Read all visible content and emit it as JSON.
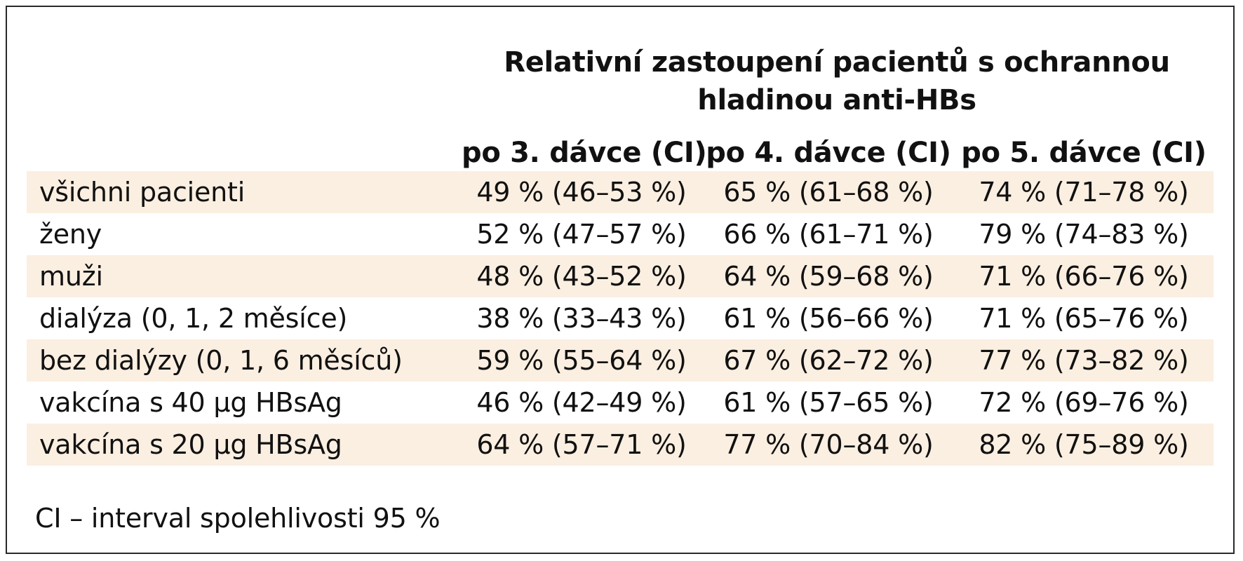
{
  "table": {
    "group_header": "Relativní zastoupení pacientů s ochrannou hladinou anti-HBs",
    "columns": [
      "po 3. dávce (CI)",
      "po 4. dávce (CI)",
      "po 5. dávce (CI)"
    ],
    "rows": [
      {
        "label": "všichni pacienti",
        "values": [
          "49 % (46–53 %)",
          "65 % (61–68 %)",
          "74 % (71–78 %)"
        ]
      },
      {
        "label": "ženy",
        "values": [
          "52 % (47–57 %)",
          "66 % (61–71 %)",
          "79 % (74–83 %)"
        ]
      },
      {
        "label": "muži",
        "values": [
          "48 % (43–52 %)",
          "64 % (59–68 %)",
          "71 % (66–76 %)"
        ]
      },
      {
        "label": "dialýza (0, 1, 2 měsíce)",
        "values": [
          "38 % (33–43 %)",
          "61 % (56–66 %)",
          "71 % (65–76 %)"
        ]
      },
      {
        "label": "bez dialýzy (0, 1, 6 měsíců)",
        "values": [
          "59 % (55–64 %)",
          "67 % (62–72 %)",
          "77 % (73–82 %)"
        ]
      },
      {
        "label": "vakcína s 40 µg HBsAg",
        "values": [
          "46 % (42–49 %)",
          "61 % (57–65 %)",
          "72 % (69–76 %)"
        ]
      },
      {
        "label": "vakcína s 20 µg HBsAg",
        "values": [
          "64 % (57–71 %)",
          "77 % (70–84 %)",
          "82 % (75–89 %)"
        ]
      }
    ],
    "footnote": "CI – interval spolehlivosti 95 %"
  },
  "colors": {
    "shaded_row": "#fbefe1",
    "border": "#2a2a2a",
    "text": "#111111"
  }
}
